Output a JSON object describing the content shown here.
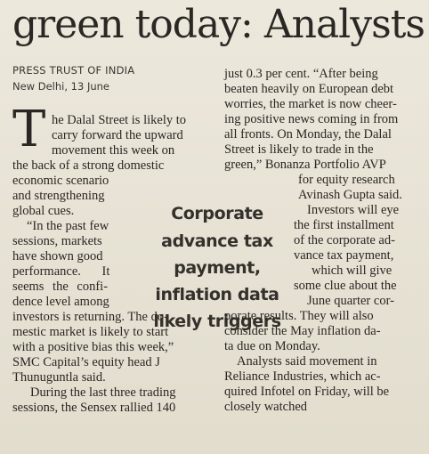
{
  "headline": "green today: Analysts",
  "byline": "PRESS TRUST OF INDIA",
  "dateline": "New Delhi, 13 June",
  "dropcap": "T",
  "col1_lines": [
    "he Dalal Street is likely to",
    "carry forward the upward",
    "movement this week on",
    "the back of a strong domestic",
    "economic scenario",
    "and strengthening",
    "global cues.",
    "“In the past few",
    "sessions, markets",
    "have shown good",
    "performance. It",
    "seems the confi-",
    "dence level among",
    "investors is returning. The do-",
    "mestic market is likely to start",
    "with a positive bias this week,”",
    "SMC Capital’s equity head J",
    "Thunuguntla said.",
    "During the last three trading",
    "sessions, the Sensex rallied 140"
  ],
  "col2_lines": [
    "just 0.3 per cent. “After being",
    "beaten heavily on European debt",
    "worries, the market is now cheer-",
    "ing positive news coming in from",
    "all fronts. On Monday, the Dalal",
    "Street is likely to trade in the",
    "green,” Bonanza Portfolio AVP",
    "for equity research",
    "Avinash Gupta said.",
    "Investors will eye",
    "the first installment",
    "of the corporate ad-",
    "vance tax payment,",
    "which will give",
    "some clue about the",
    "June quarter cor-",
    "porate results. They will also",
    "consider the May inflation da-",
    "ta due on Monday.",
    "Analysts said movement in",
    "Reliance Industries, which ac-",
    "quired Infotel on Friday, will be",
    "closely watched"
  ],
  "pull_quote": [
    "Corporate",
    "advance tax",
    "payment,",
    "inflation data",
    "likely triggers"
  ]
}
